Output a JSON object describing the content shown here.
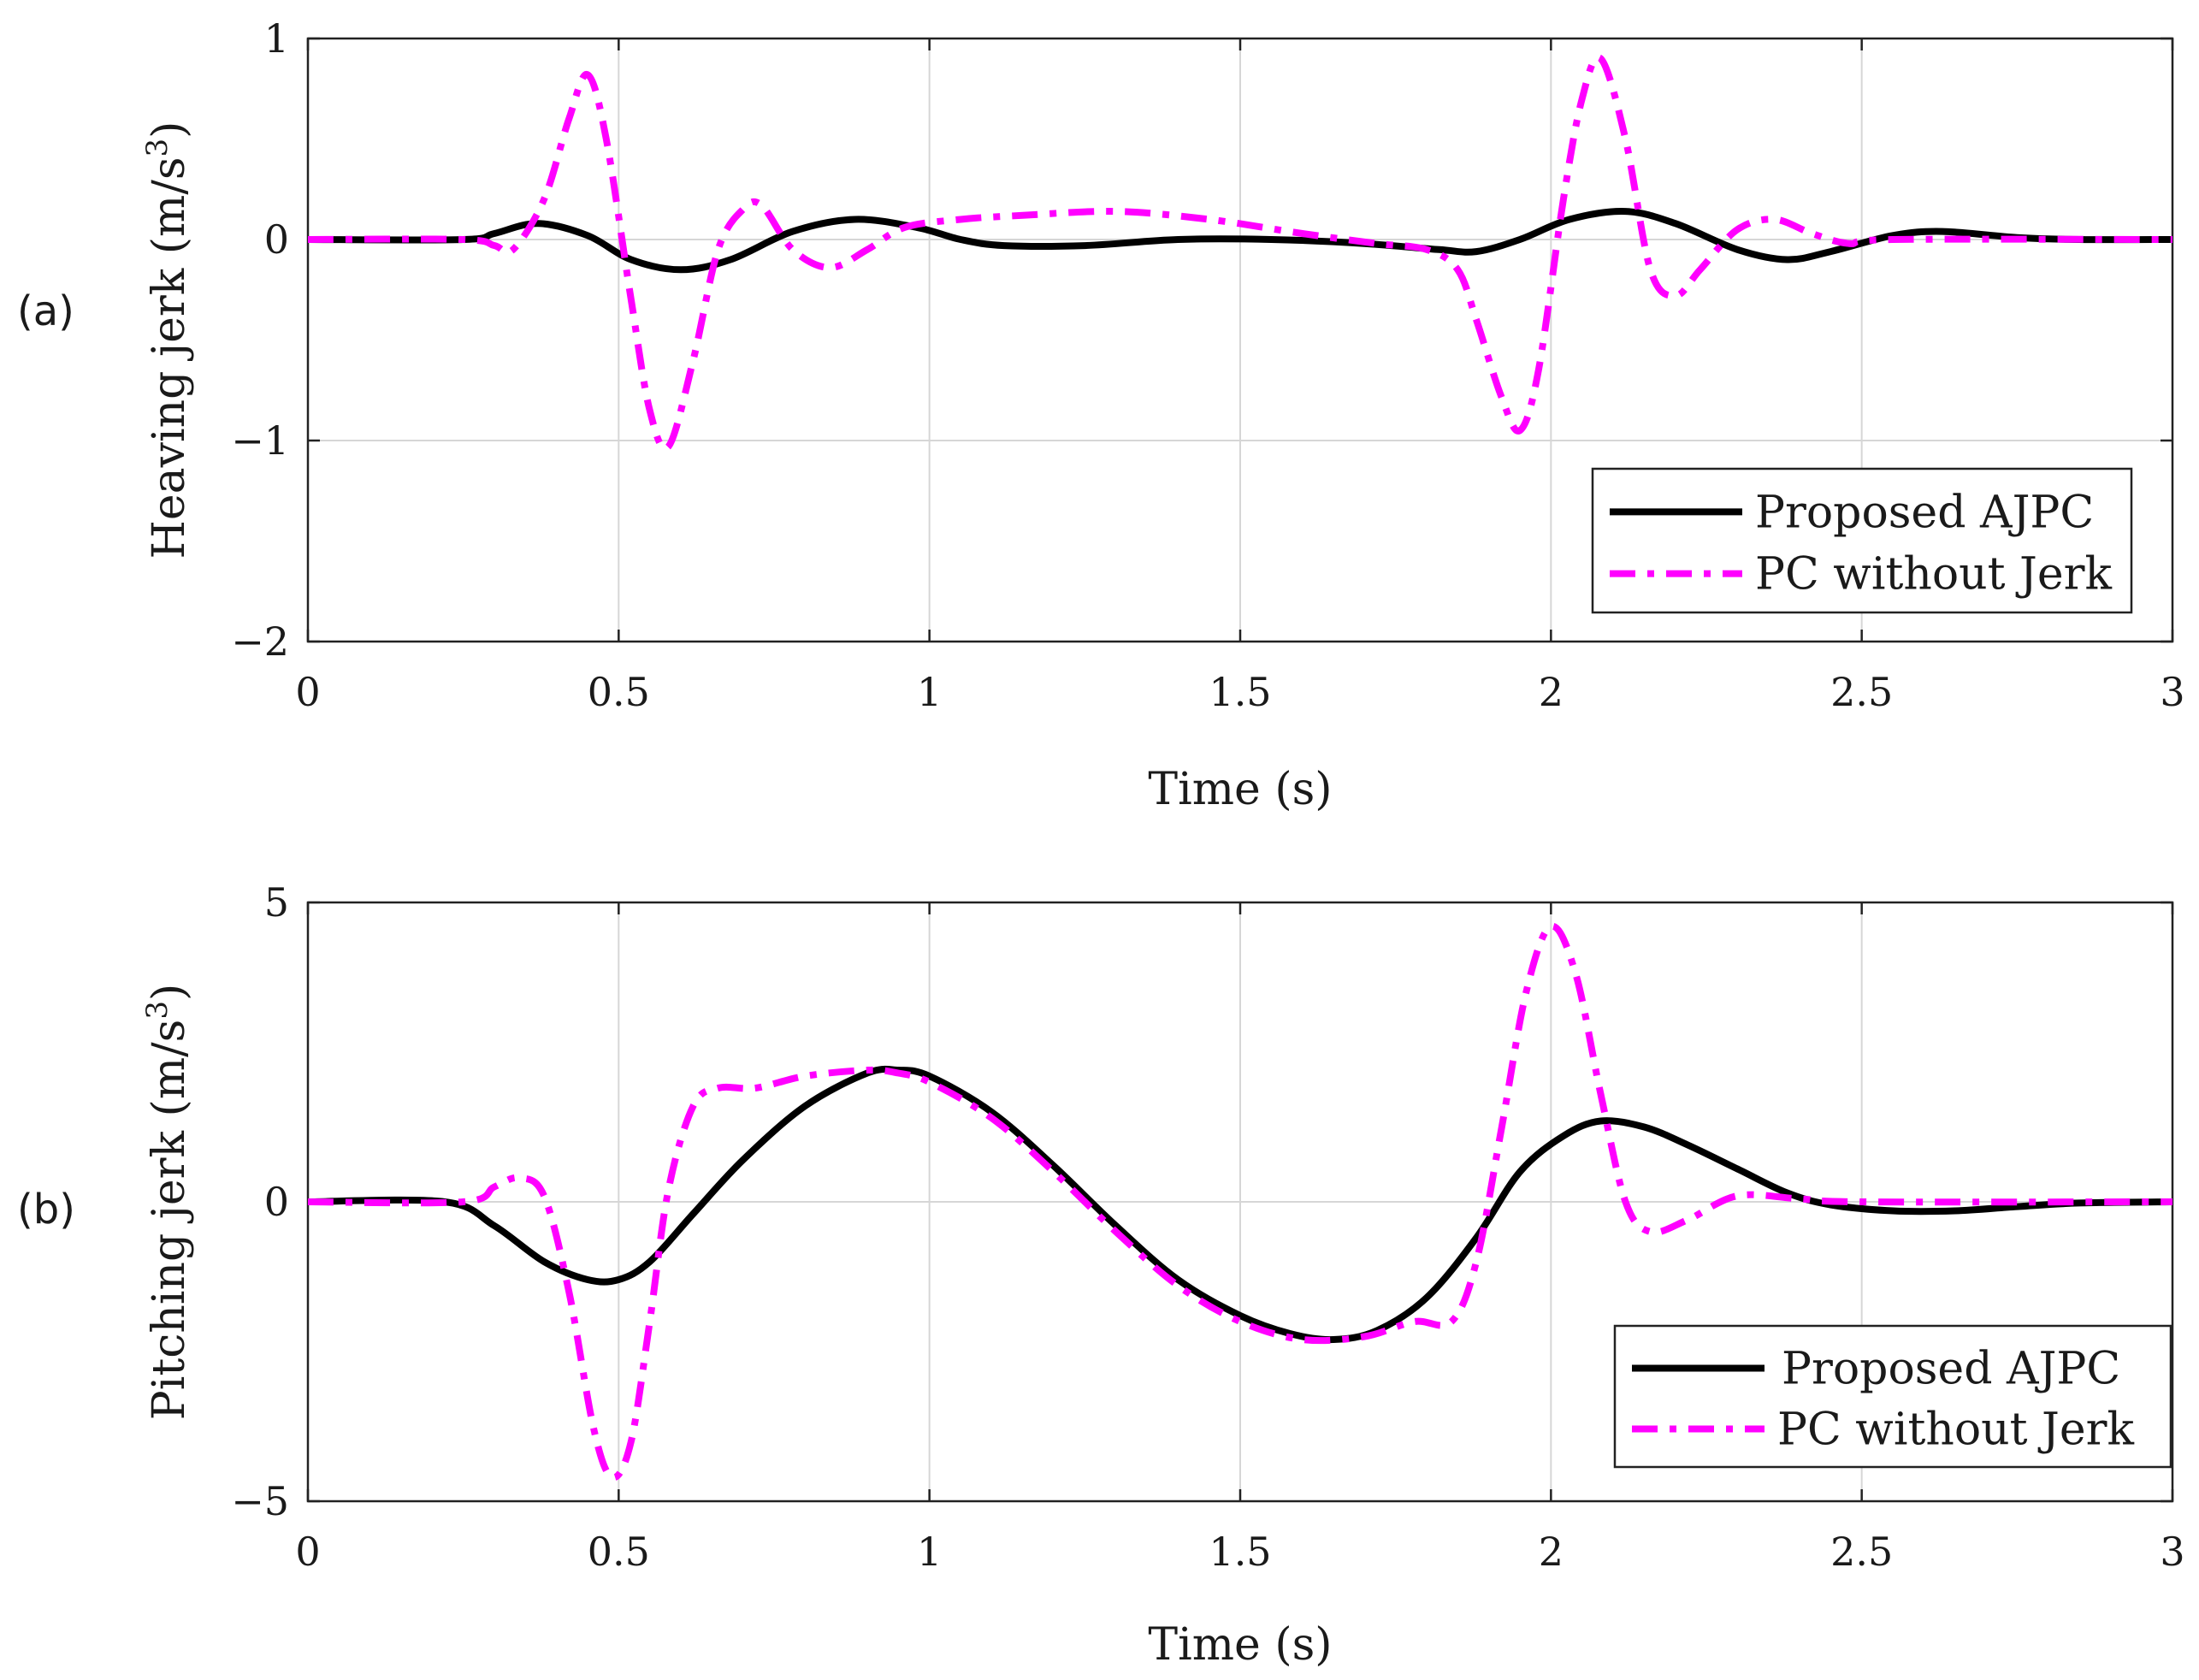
{
  "colors": {
    "proposed": "#000000",
    "pc": "#ff00ff"
  },
  "legend": {
    "proposed": "Proposed AJPC",
    "pc": "PC without Jerk"
  },
  "chart_data": [
    {
      "type": "line",
      "panel_label": "(a)",
      "xlabel": "Time (s)",
      "ylabel": "Heaving jerk (m/s",
      "ylabel_unit_exp": "3",
      "ylabel_close": ")",
      "xlim": [
        0,
        3
      ],
      "ylim": [
        -2,
        1
      ],
      "xticks": [
        0,
        0.5,
        1,
        1.5,
        2,
        2.5,
        3
      ],
      "xtick_labels": [
        "0",
        "0.5",
        "1",
        "1.5",
        "2",
        "2.5",
        "3"
      ],
      "yticks": [
        1,
        0,
        -1,
        -2
      ],
      "ytick_labels": [
        "1",
        "0",
        "−1",
        "−2"
      ],
      "grid": true,
      "legend_position": "bottom-right",
      "series": [
        {
          "name": "Proposed AJPC",
          "key": "proposed",
          "style": "solid",
          "x": [
            0,
            0.25,
            0.3,
            0.37,
            0.45,
            0.52,
            0.6,
            0.68,
            0.78,
            0.88,
            0.98,
            1.05,
            1.12,
            1.25,
            1.4,
            1.55,
            1.7,
            1.82,
            1.88,
            1.95,
            2.03,
            2.12,
            2.2,
            2.3,
            2.38,
            2.45,
            2.55,
            2.63,
            2.75,
            2.85,
            3.0
          ],
          "y": [
            0,
            0,
            0.03,
            0.08,
            0.02,
            -0.1,
            -0.15,
            -0.1,
            0.04,
            0.1,
            0.06,
            0.0,
            -0.03,
            -0.03,
            0.0,
            0.0,
            -0.02,
            -0.05,
            -0.06,
            0.0,
            0.1,
            0.14,
            0.08,
            -0.05,
            -0.1,
            -0.06,
            0.02,
            0.04,
            0.01,
            0.0,
            0.0
          ]
        },
        {
          "name": "PC without Jerk",
          "key": "pc",
          "style": "dashdot",
          "x": [
            0,
            0.25,
            0.3,
            0.33,
            0.38,
            0.42,
            0.45,
            0.48,
            0.52,
            0.55,
            0.58,
            0.62,
            0.66,
            0.7,
            0.73,
            0.78,
            0.84,
            0.9,
            0.96,
            1.05,
            1.15,
            1.3,
            1.45,
            1.6,
            1.72,
            1.8,
            1.85,
            1.88,
            1.92,
            1.95,
            1.98,
            2.02,
            2.05,
            2.08,
            2.12,
            2.16,
            2.2,
            2.24,
            2.3,
            2.36,
            2.42,
            2.48,
            2.55,
            3.0
          ],
          "y": [
            0,
            0,
            -0.03,
            -0.05,
            0.2,
            0.6,
            0.82,
            0.5,
            -0.3,
            -0.85,
            -1.03,
            -0.6,
            -0.05,
            0.15,
            0.17,
            -0.05,
            -0.14,
            -0.05,
            0.06,
            0.1,
            0.12,
            0.14,
            0.1,
            0.03,
            -0.02,
            -0.05,
            -0.15,
            -0.4,
            -0.78,
            -0.95,
            -0.65,
            0.2,
            0.7,
            0.9,
            0.5,
            -0.15,
            -0.28,
            -0.15,
            0.05,
            0.1,
            0.03,
            -0.02,
            0.0,
            0.0
          ]
        }
      ]
    },
    {
      "type": "line",
      "panel_label": "(b)",
      "xlabel": "Time (s)",
      "ylabel": "Pitching jerk (m/s",
      "ylabel_unit_exp": "3",
      "ylabel_close": ")",
      "xlim": [
        0,
        3
      ],
      "ylim": [
        -5,
        5
      ],
      "xticks": [
        0,
        0.5,
        1,
        1.5,
        2,
        2.5,
        3
      ],
      "xtick_labels": [
        "0",
        "0.5",
        "1",
        "1.5",
        "2",
        "2.5",
        "3"
      ],
      "yticks": [
        5,
        0,
        -5
      ],
      "ytick_labels": [
        "5",
        "0",
        "−5"
      ],
      "grid": true,
      "legend_position": "bottom-right",
      "series": [
        {
          "name": "Proposed AJPC",
          "key": "proposed",
          "style": "solid",
          "x": [
            0,
            0.22,
            0.3,
            0.38,
            0.45,
            0.5,
            0.55,
            0.62,
            0.7,
            0.8,
            0.9,
            0.95,
            1.0,
            1.1,
            1.2,
            1.3,
            1.4,
            1.5,
            1.58,
            1.65,
            1.72,
            1.8,
            1.88,
            1.95,
            2.02,
            2.08,
            2.15,
            2.22,
            2.3,
            2.38,
            2.45,
            2.55,
            2.65,
            2.75,
            2.85,
            3.0
          ],
          "y": [
            0,
            0,
            -0.4,
            -1.0,
            -1.3,
            -1.3,
            -1.0,
            -0.2,
            0.7,
            1.6,
            2.15,
            2.2,
            2.1,
            1.5,
            0.6,
            -0.4,
            -1.3,
            -1.9,
            -2.2,
            -2.3,
            -2.15,
            -1.6,
            -0.6,
            0.5,
            1.1,
            1.35,
            1.25,
            0.95,
            0.55,
            0.15,
            -0.05,
            -0.15,
            -0.15,
            -0.08,
            -0.02,
            0.0
          ]
        },
        {
          "name": "PC without Jerk",
          "key": "pc",
          "style": "dashdot",
          "x": [
            0,
            0.25,
            0.3,
            0.34,
            0.38,
            0.42,
            0.46,
            0.49,
            0.52,
            0.55,
            0.58,
            0.62,
            0.66,
            0.72,
            0.8,
            0.9,
            0.95,
            1.0,
            1.1,
            1.2,
            1.3,
            1.4,
            1.5,
            1.6,
            1.7,
            1.78,
            1.84,
            1.88,
            1.92,
            1.96,
            2.0,
            2.04,
            2.08,
            2.12,
            2.16,
            2.22,
            2.3,
            2.4,
            2.5,
            3.0
          ],
          "y": [
            0,
            0,
            0.25,
            0.4,
            0.1,
            -1.5,
            -3.8,
            -4.6,
            -4.0,
            -2.0,
            0.2,
            1.6,
            1.9,
            1.9,
            2.1,
            2.2,
            2.15,
            2.0,
            1.4,
            0.5,
            -0.5,
            -1.4,
            -2.0,
            -2.3,
            -2.25,
            -2.0,
            -2.0,
            -1.0,
            1.2,
            3.5,
            4.6,
            3.8,
            1.8,
            0.0,
            -0.5,
            -0.3,
            0.1,
            0.05,
            0.0,
            0.0
          ]
        }
      ]
    }
  ]
}
